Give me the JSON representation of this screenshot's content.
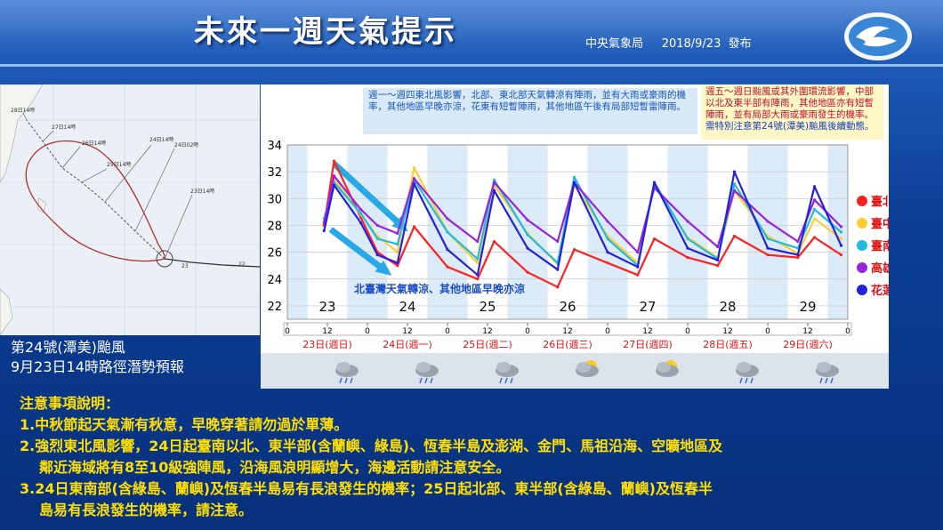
{
  "header": {
    "title": "未來一週天氣提示",
    "issuer": "中央氣象局",
    "issue_date": "2018/9/23",
    "issue_word": "發布"
  },
  "typhoon_map": {
    "caption_line1": "第24號(潭美)颱風",
    "caption_line2": "9月23日14時路徑潛勢預報",
    "track_labels": [
      "28日14時",
      "27日14時",
      "26日14時",
      "25日14時",
      "24日14時",
      "24日02時",
      "23日14時"
    ],
    "current_labels": [
      "23",
      "22"
    ]
  },
  "notes": {
    "left": "週一～週四東北風影響，北部、東北部天氣轉涼有陣雨，並有大雨或豪雨的機率，其他地區早晚亦涼，花東有短暫陣雨，其他地區午後有局部短暫雷陣雨。",
    "right_main": "週五～週日颱風或其外圍環流影響，中部以北及東半部有陣雨，其他地區亦有短暫陣雨，並有局部大雨或豪雨發生的機率。",
    "right_last": "需特別注意第24號(潭美)颱風後續動態。"
  },
  "chart_data": {
    "type": "line",
    "ylim": [
      21,
      34
    ],
    "yticks": [
      22,
      24,
      26,
      28,
      30,
      32,
      34
    ],
    "hour_ticks": [
      "0",
      "12",
      "0",
      "12",
      "0",
      "12",
      "0",
      "12",
      "0",
      "12",
      "0",
      "12",
      "0",
      "12",
      "0"
    ],
    "day_numbers": [
      "23",
      "24",
      "25",
      "26",
      "27",
      "28",
      "29"
    ],
    "day_labels": [
      "23日(週日)",
      "24日(週一)",
      "25日(週二)",
      "26日(週三)",
      "27日(週四)",
      "28日(週五)",
      "29日(週六)"
    ],
    "weather_icons": [
      "rain-icon",
      "rain-icon",
      "cloud-rain-icon",
      "partly-sunny-icon",
      "partly-sunny-icon",
      "cloud-rain-icon",
      "cloud-rain-icon"
    ],
    "annotation": "北臺灣天氣轉涼、其他地區早晚亦涼",
    "series": [
      {
        "name": "臺北",
        "color": "#ff2020",
        "points": [
          [
            11,
            28.0
          ],
          [
            14,
            32.8
          ],
          [
            22,
            28.6
          ],
          [
            27,
            26.0
          ],
          [
            33,
            25.0
          ],
          [
            38,
            27.9
          ],
          [
            48,
            24.9
          ],
          [
            57,
            24.0
          ],
          [
            62,
            26.8
          ],
          [
            72,
            24.5
          ],
          [
            81,
            23.4
          ],
          [
            86,
            26.2
          ],
          [
            96,
            25.2
          ],
          [
            105,
            24.3
          ],
          [
            110,
            27.0
          ],
          [
            120,
            25.6
          ],
          [
            129,
            25.0
          ],
          [
            134,
            27.2
          ],
          [
            144,
            25.8
          ],
          [
            153,
            25.6
          ],
          [
            158,
            27.1
          ],
          [
            166,
            25.8
          ]
        ]
      },
      {
        "name": "臺中",
        "color": "#ffcc33",
        "points": [
          [
            11,
            28.3
          ],
          [
            14,
            31.5
          ],
          [
            22,
            28.8
          ],
          [
            27,
            27.2
          ],
          [
            33,
            26.0
          ],
          [
            38,
            32.3
          ],
          [
            48,
            27.5
          ],
          [
            57,
            25.2
          ],
          [
            62,
            31.0
          ],
          [
            72,
            27.4
          ],
          [
            81,
            25.1
          ],
          [
            86,
            31.0
          ],
          [
            96,
            27.2
          ],
          [
            105,
            25.2
          ],
          [
            110,
            31.0
          ],
          [
            120,
            27.1
          ],
          [
            129,
            25.6
          ],
          [
            134,
            30.6
          ],
          [
            144,
            27.2
          ],
          [
            153,
            25.9
          ],
          [
            158,
            28.5
          ],
          [
            166,
            27.0
          ]
        ]
      },
      {
        "name": "臺南",
        "color": "#22bbdd",
        "points": [
          [
            11,
            28.5
          ],
          [
            14,
            31.2
          ],
          [
            22,
            28.9
          ],
          [
            27,
            27.0
          ],
          [
            33,
            26.6
          ],
          [
            38,
            31.4
          ],
          [
            48,
            27.5
          ],
          [
            57,
            25.5
          ],
          [
            62,
            31.4
          ],
          [
            72,
            27.3
          ],
          [
            81,
            25.2
          ],
          [
            86,
            31.6
          ],
          [
            96,
            27.0
          ],
          [
            105,
            25.0
          ],
          [
            110,
            31.2
          ],
          [
            120,
            27.0
          ],
          [
            129,
            25.5
          ],
          [
            134,
            31.1
          ],
          [
            144,
            27.0
          ],
          [
            153,
            26.3
          ],
          [
            158,
            29.2
          ],
          [
            166,
            27.5
          ]
        ]
      },
      {
        "name": "高雄",
        "color": "#9922dd",
        "points": [
          [
            11,
            28.2
          ],
          [
            14,
            31.7
          ],
          [
            22,
            29.2
          ],
          [
            27,
            28.0
          ],
          [
            33,
            27.4
          ],
          [
            38,
            31.5
          ],
          [
            48,
            28.5
          ],
          [
            57,
            26.8
          ],
          [
            62,
            31.2
          ],
          [
            72,
            28.4
          ],
          [
            81,
            26.8
          ],
          [
            86,
            31.2
          ],
          [
            96,
            28.3
          ],
          [
            105,
            26.0
          ],
          [
            110,
            30.8
          ],
          [
            120,
            28.3
          ],
          [
            129,
            26.4
          ],
          [
            134,
            30.6
          ],
          [
            144,
            28.3
          ],
          [
            153,
            26.8
          ],
          [
            158,
            29.9
          ],
          [
            166,
            27.9
          ]
        ]
      },
      {
        "name": "花蓮",
        "color": "#2222dd",
        "points": [
          [
            11,
            27.6
          ],
          [
            14,
            31.0
          ],
          [
            22,
            28.2
          ],
          [
            27,
            25.8
          ],
          [
            33,
            25.2
          ],
          [
            38,
            31.1
          ],
          [
            48,
            26.2
          ],
          [
            57,
            24.3
          ],
          [
            62,
            30.6
          ],
          [
            72,
            26.3
          ],
          [
            81,
            24.7
          ],
          [
            86,
            31.2
          ],
          [
            96,
            26.0
          ],
          [
            105,
            24.9
          ],
          [
            110,
            31.2
          ],
          [
            120,
            26.3
          ],
          [
            129,
            25.4
          ],
          [
            134,
            32.0
          ],
          [
            144,
            26.3
          ],
          [
            153,
            25.8
          ],
          [
            158,
            30.9
          ],
          [
            166,
            26.5
          ]
        ]
      }
    ]
  },
  "precautions": {
    "heading": "注意事項說明：",
    "item1": "1.中秋節起天氣漸有秋意，早晚穿著請勿過於單薄。",
    "item2a": "2.強烈東北風影響，24日起臺南以北、東半部(含蘭嶼、綠島)、恆春半島及澎湖、金門、馬祖沿海、空曠地區及",
    "item2b": "鄰近海域將有8至10級強陣風，沿海風浪明顯增大，海邊活動請注意安全。",
    "item3a": "3.24日東南部(含綠島、蘭嶼)及恆春半島易有長浪發生的機率；25日起北部、東半部(含綠島、蘭嶼)及恆春半",
    "item3b": "島易有長浪發生的機率，請注意。"
  }
}
